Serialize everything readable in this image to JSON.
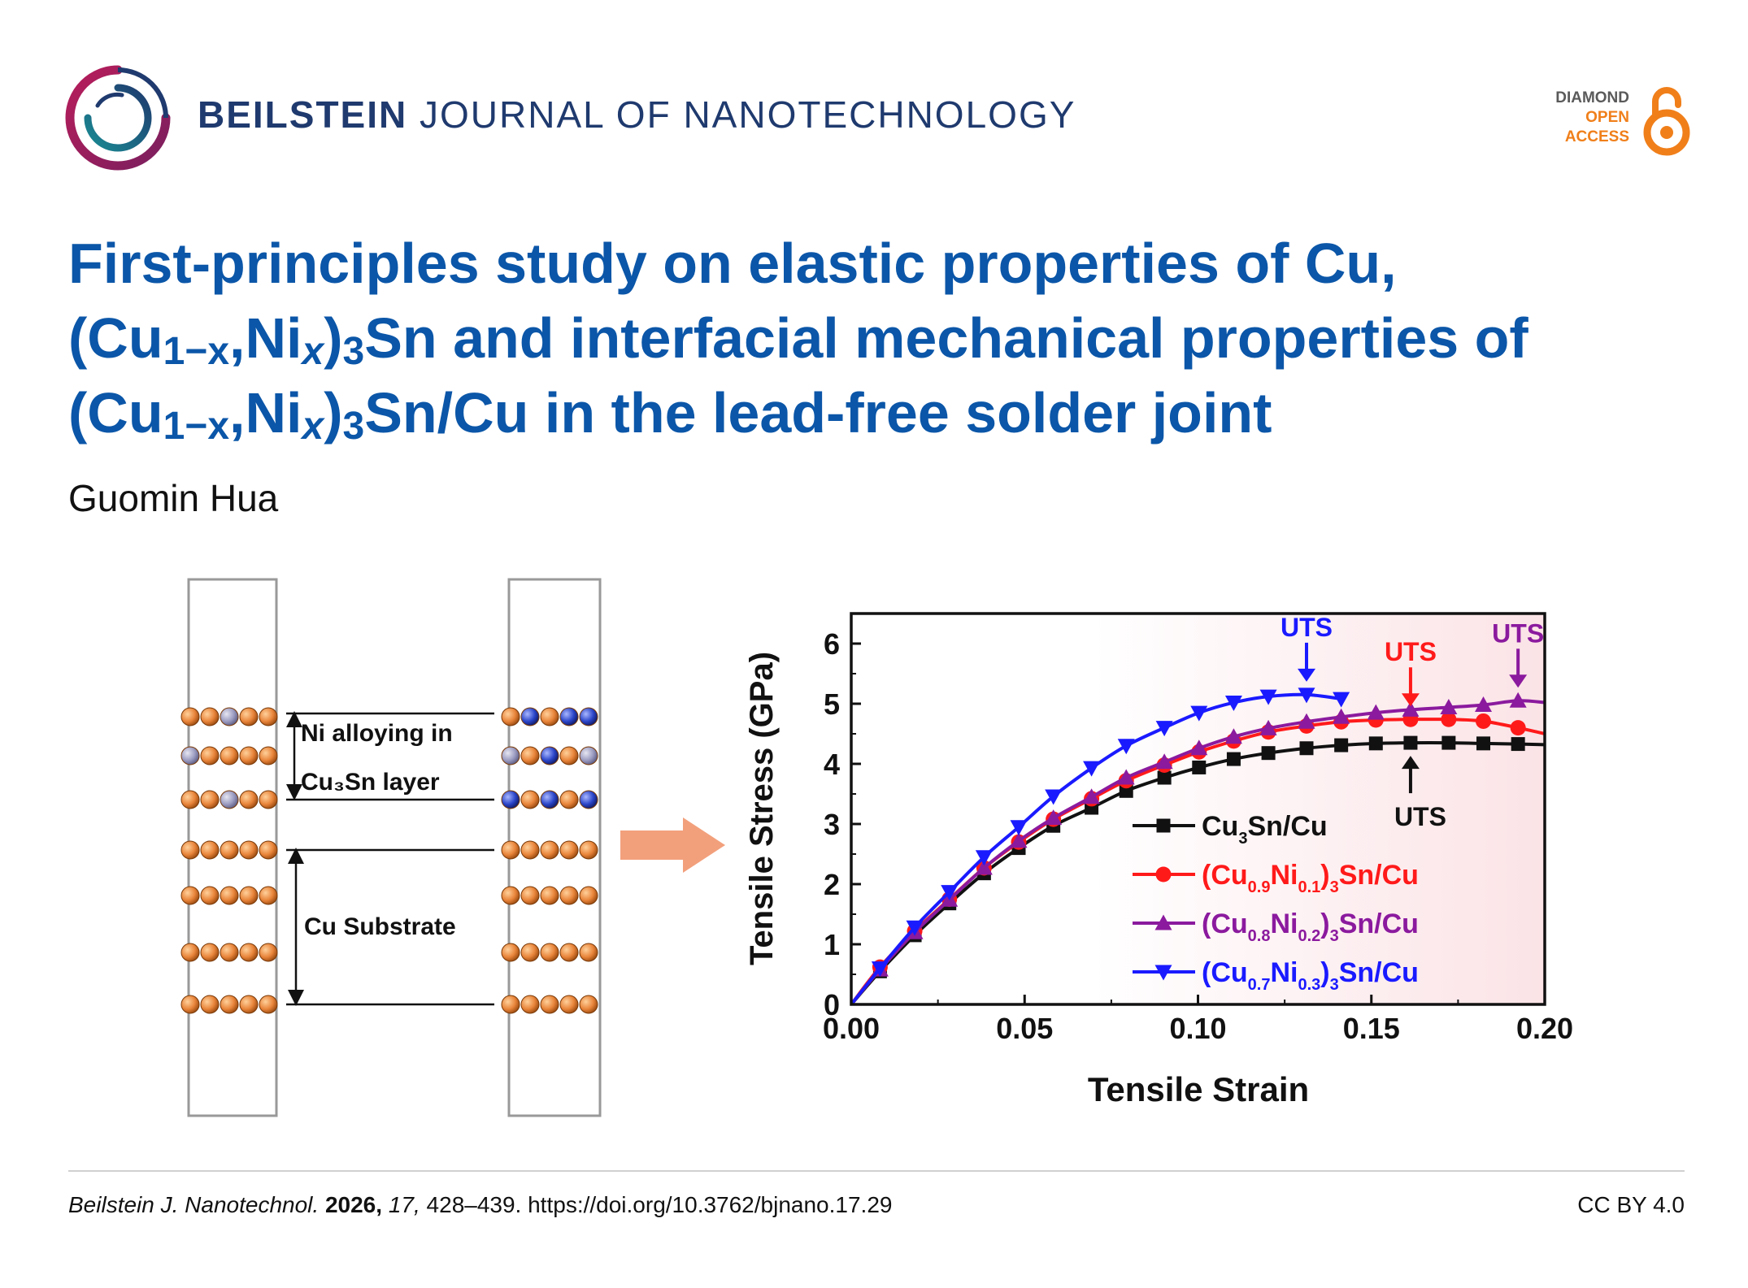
{
  "header": {
    "journal_bold": "BEILSTEIN",
    "journal_rest": " JOURNAL OF NANOTECHNOLOGY",
    "badge": [
      "DIAMOND",
      "OPEN",
      "ACCESS"
    ]
  },
  "title": {
    "line1": "First-principles study on elastic properties of Cu,",
    "l2_open": "(Cu",
    "sub_1x": "1−x",
    "comma_ni": ",Ni",
    "sub_x": "x",
    "close_3": ")",
    "sub_3": "3",
    "l2_tail": "Sn and interfacial mechanical properties of",
    "l3_tail": "Sn/Cu in the lead-free solder joint"
  },
  "author": "Guomin Hua",
  "schematic": {
    "label_alloy_1": "Ni alloying in",
    "label_alloy_2": "Cu₃Sn layer",
    "label_substrate": "Cu Substrate"
  },
  "chart_data": {
    "type": "line",
    "xlabel": "Tensile Strain",
    "ylabel": "Tensile Stress (GPa)",
    "xlim": [
      0,
      0.2
    ],
    "ylim": [
      0,
      6.5
    ],
    "xticks": [
      "0.00",
      "0.05",
      "0.10",
      "0.15",
      "0.20"
    ],
    "yticks": [
      "0",
      "1",
      "2",
      "3",
      "4",
      "5",
      "6"
    ],
    "x": [
      0,
      0.0083,
      0.0183,
      0.0283,
      0.0383,
      0.0483,
      0.0583,
      0.0693,
      0.0793,
      0.0903,
      0.1003,
      0.1103,
      0.1203,
      0.1313,
      0.1413,
      0.1513,
      0.1613,
      0.1723,
      0.1823,
      0.1923,
      0.2
    ],
    "series": [
      {
        "name": "Cu3Sn/Cu",
        "legend_parts": [
          "Cu",
          "3",
          "Sn/Cu"
        ],
        "color": "#111111",
        "marker": "square",
        "values": [
          0,
          0.55,
          1.15,
          1.68,
          2.18,
          2.6,
          2.97,
          3.27,
          3.55,
          3.77,
          3.94,
          4.08,
          4.18,
          4.26,
          4.31,
          4.34,
          4.35,
          4.35,
          4.34,
          4.33,
          4.32
        ]
      },
      {
        "name": "(Cu0.9Ni0.1)3Sn/Cu",
        "legend_parts": [
          "(Cu",
          "0.9",
          "Ni",
          "0.1",
          ")",
          "3",
          "Sn/Cu"
        ],
        "color": "#ff1a1a",
        "marker": "circle",
        "values": [
          0,
          0.62,
          1.22,
          1.75,
          2.27,
          2.7,
          3.08,
          3.42,
          3.72,
          3.98,
          4.2,
          4.38,
          4.53,
          4.63,
          4.7,
          4.73,
          4.74,
          4.74,
          4.71,
          4.6,
          4.5
        ]
      },
      {
        "name": "(Cu0.8Ni0.2)3Sn/Cu",
        "legend_parts": [
          "(Cu",
          "0.8",
          "Ni",
          "0.2",
          ")",
          "3",
          "Sn/Cu"
        ],
        "color": "#8b1a9e",
        "marker": "triangle-up",
        "values": [
          0,
          0.58,
          1.2,
          1.74,
          2.27,
          2.72,
          3.1,
          3.45,
          3.77,
          4.03,
          4.26,
          4.45,
          4.59,
          4.7,
          4.78,
          4.85,
          4.9,
          4.94,
          4.98,
          5.05,
          5.02
        ]
      },
      {
        "name": "(Cu0.7Ni0.3)3Sn/Cu",
        "legend_parts": [
          "(Cu",
          "0.7",
          "Ni",
          "0.3",
          ")",
          "3",
          "Sn/Cu"
        ],
        "color": "#1a1aff",
        "marker": "triangle-down",
        "values": [
          0,
          0.6,
          1.28,
          1.87,
          2.45,
          2.95,
          3.46,
          3.93,
          4.3,
          4.6,
          4.85,
          5.02,
          5.12,
          5.15,
          5.08,
          null,
          null,
          null,
          null,
          null,
          null
        ]
      }
    ],
    "annotations": [
      {
        "text": "UTS",
        "x": 0.1313,
        "y": 5.15,
        "color": "#1a1aff",
        "direction": "down"
      },
      {
        "text": "UTS",
        "x": 0.1613,
        "y": 4.74,
        "color": "#ff1a1a",
        "direction": "down"
      },
      {
        "text": "UTS",
        "x": 0.1923,
        "y": 5.05,
        "color": "#8b1a9e",
        "direction": "down"
      },
      {
        "text": "UTS",
        "x": 0.1613,
        "y": 4.35,
        "color": "#111111",
        "direction": "up"
      }
    ]
  },
  "footer": {
    "journal_abbr": "Beilstein J. Nanotechnol.",
    "year": "2026,",
    "volume": "17,",
    "pages_doi": "428–439. https://doi.org/10.3762/bjnano.17.29",
    "license": "CC BY 4.0"
  }
}
